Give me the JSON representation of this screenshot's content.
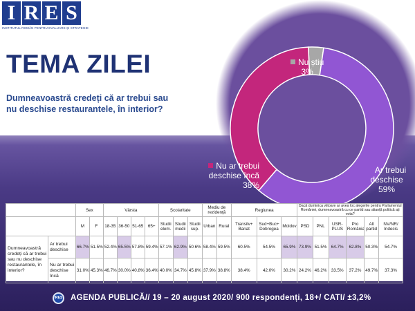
{
  "logo": {
    "letters": [
      "I",
      "R",
      "E",
      "S"
    ],
    "subtitle": "INSTITUTUL ROMÂN PENTRU EVALUARE ȘI STRATEGIE"
  },
  "title": "TEMA ZILEI",
  "question": "Dumneavoastră credeți că ar trebui sau nu deschise restaurantele, în interior?",
  "colors": {
    "da": "#9156d3",
    "nu": "#c3267c",
    "nustiu": "#a7a7a7",
    "highlight": "#d8cbe8",
    "footer_icon": "#1f4aa8"
  },
  "chart_data": {
    "type": "pie",
    "title": "",
    "slices": [
      {
        "label": "Ar trebui deschise",
        "value": 59,
        "display": "59%",
        "color": "#9156d3"
      },
      {
        "label": "Nu ar trebui deschise încă",
        "value": 38,
        "display": "38%",
        "color": "#c3267c"
      },
      {
        "label": "Nu știu",
        "value": 3,
        "display": "3%",
        "color": "#a7a7a7"
      }
    ],
    "donut": true
  },
  "labels": {
    "nustiu_name": "Nu știu",
    "nustiu_pct": "3%",
    "nu_name": "Nu ar trebui deschise încă",
    "nu_pct": "38%",
    "da_name": "Ar trebui deschise",
    "da_pct": "59%"
  },
  "table": {
    "groups": {
      "sex": "Sex",
      "varsta": "Vârsta",
      "scolaritate": "Școlaritate",
      "mediu": "Mediu de rezidență",
      "regiunea": "Regiunea",
      "vot": "Dacă duminica viitoare ar avea loc alegerile pentru Parlamentul României, dumneavoastră cu ce partid sau alianță politică ați vota?"
    },
    "columns": [
      "M",
      "F",
      "18-35",
      "36-50",
      "51-65",
      "65+",
      "Studii elem.",
      "Studii medii",
      "Studii sup.",
      "Urban",
      "Rural",
      "Transilv+ Banat",
      "Sud+Buc+ Dobrogea",
      "Moldova",
      "PSD",
      "PNL",
      "USR-PLUS",
      "Pro România",
      "Alt partid",
      "NV/NR/ Indecis"
    ],
    "question": "Dumneavoastră credeți că ar trebui sau nu deschise restaurantele, în interior?",
    "rows": [
      {
        "label": "Ar trebui deschise",
        "values": [
          "66.7%",
          "51.5%",
          "52.4%",
          "65.5%",
          "57.8%",
          "59.4%",
          "57.1%",
          "62.9%",
          "50.6%",
          "58.4%",
          "59.5%",
          "60.5%",
          "54.5%",
          "65.9%",
          "73.9%",
          "51.5%",
          "64.7%",
          "62.8%",
          "50.3%",
          "54.7%"
        ],
        "highlight": [
          true,
          false,
          false,
          true,
          false,
          false,
          false,
          true,
          false,
          false,
          false,
          false,
          false,
          true,
          true,
          false,
          true,
          true,
          false,
          false
        ]
      },
      {
        "label": "Nu ar trebui deschise încă",
        "values": [
          "31.0%",
          "45.3%",
          "46.7%",
          "30.0%",
          "40.8%",
          "36.4%",
          "40.0%",
          "34.7%",
          "45.8%",
          "37.9%",
          "38.8%",
          "38.4%",
          "42.0%",
          "30.2%",
          "24.2%",
          "46.2%",
          "33.5%",
          "37.2%",
          "49.7%",
          "37.3%"
        ],
        "highlight": [
          false,
          false,
          false,
          false,
          false,
          false,
          false,
          false,
          false,
          false,
          false,
          false,
          false,
          false,
          false,
          false,
          false,
          false,
          false,
          false
        ]
      }
    ]
  },
  "footer": {
    "icon_text": "IRES",
    "text": "AGENDA PUBLICĂ// 19 – 20 august 2020/ 900 respondenți, 18+/ CATI/ ±3,2%"
  }
}
